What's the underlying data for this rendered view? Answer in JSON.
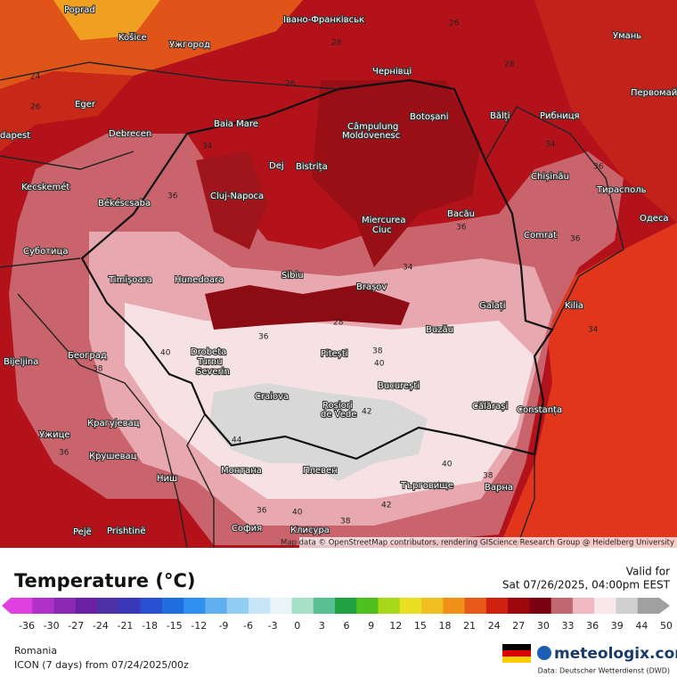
{
  "map": {
    "cities": [
      "Poprad",
      "Івано-Франківськ",
      "Košice",
      "Ужгород",
      "Умань",
      "Eger",
      "Baia Mare",
      "Чернівці",
      "Botoșani",
      "Bălți",
      "Рибниця",
      "Первомайськ",
      "dapest",
      "Debrecen",
      "Câmpulung",
      "Moldovenesc",
      "Dej",
      "Bistrița",
      "Chișinău",
      "Kecskemét",
      "Békéscsaba",
      "Cluj-Napoca",
      "Тирасполь",
      "Bacău",
      "Miercurea",
      "Ciuc",
      "Одеса",
      "Суботица",
      "Comrat",
      "Timișoara",
      "Hunedoara",
      "Sibiu",
      "Brașov",
      "Galați",
      "Kilia",
      "Bijeljina",
      "Београд",
      "Drobeta",
      "Turnu",
      "Severin",
      "Pitești",
      "Buzău",
      "Craiova",
      "București",
      "Roșiori",
      "de Vede",
      "Călărași",
      "Constanța",
      "Крагујевац",
      "Ужице",
      "Крушевац",
      "Ниш",
      "Монтана",
      "Плевен",
      "Търговище",
      "Варна",
      "София",
      "Клисура",
      "Pejë",
      "Prishtinë"
    ],
    "contour_labels": [
      26,
      28,
      24,
      26,
      28,
      28,
      26,
      34,
      34,
      36,
      36,
      36,
      36,
      34,
      40,
      38,
      38,
      40,
      42,
      44,
      40,
      38,
      42,
      40,
      38,
      36,
      36,
      34,
      36
    ],
    "attribution": "Map data © OpenStreetMap contributors, rendering GIScience Research Group @ Heidelberg University"
  },
  "legend": {
    "title": "Temperature (°C)",
    "valid_label": "Valid for",
    "valid_time": "Sat 07/26/2025, 04:00pm EEST",
    "ticks": [
      -36,
      -30,
      -27,
      -24,
      -21,
      -18,
      -15,
      -12,
      -9,
      -6,
      -3,
      0,
      3,
      6,
      9,
      12,
      15,
      18,
      21,
      24,
      27,
      30,
      33,
      36,
      39,
      44,
      50
    ]
  },
  "footer": {
    "region": "Romania",
    "model": "ICON (7 days) from 07/24/2025/00z",
    "brand": "meteologix.com",
    "source": "Data: Deutscher Wetterdienst (DWD)"
  }
}
